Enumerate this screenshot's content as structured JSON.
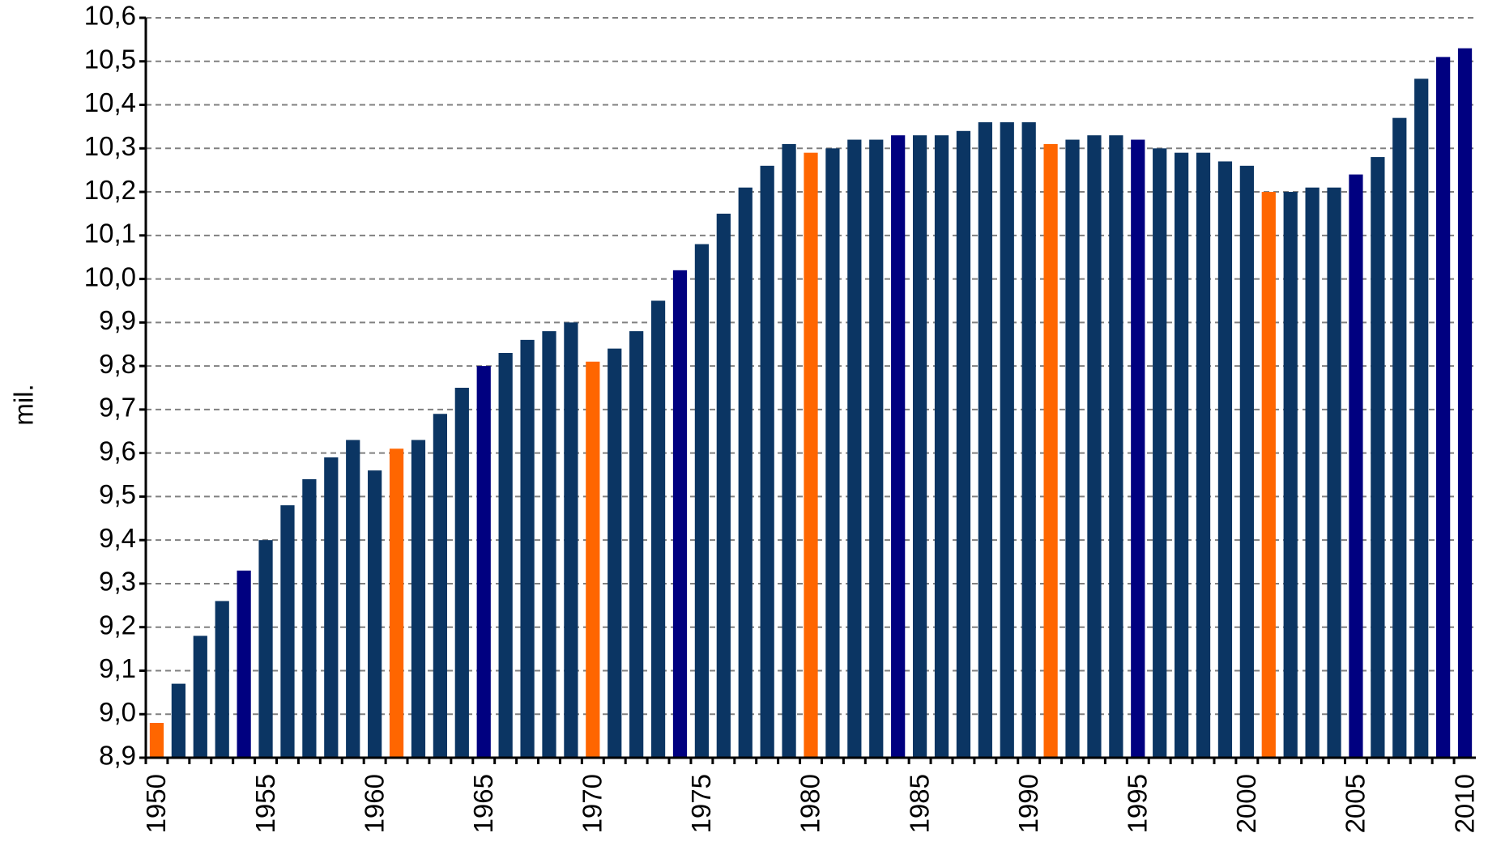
{
  "chart_data": {
    "type": "bar",
    "y_label": "mil.",
    "categories": [
      "1950",
      null,
      null,
      null,
      null,
      "1955",
      null,
      null,
      null,
      null,
      "1960",
      null,
      null,
      null,
      null,
      "1965",
      null,
      null,
      null,
      null,
      "1970",
      null,
      null,
      null,
      null,
      "1975",
      null,
      null,
      null,
      null,
      "1980",
      null,
      null,
      null,
      null,
      "1985",
      null,
      null,
      null,
      null,
      "1990",
      null,
      null,
      null,
      null,
      "1995",
      null,
      null,
      null,
      null,
      "2000",
      null,
      null,
      null,
      null,
      "2005",
      null,
      null,
      null,
      null,
      "2010"
    ],
    "values": [
      8.98,
      9.07,
      9.18,
      9.26,
      9.33,
      9.4,
      9.48,
      9.54,
      9.59,
      9.63,
      9.56,
      9.61,
      9.63,
      9.69,
      9.75,
      9.8,
      9.83,
      9.86,
      9.88,
      9.9,
      9.81,
      9.84,
      9.88,
      9.95,
      10.02,
      10.08,
      10.15,
      10.21,
      10.26,
      10.31,
      10.29,
      10.3,
      10.32,
      10.32,
      10.33,
      10.33,
      10.33,
      10.34,
      10.36,
      10.36,
      10.36,
      10.31,
      10.32,
      10.33,
      10.33,
      10.32,
      10.3,
      10.29,
      10.29,
      10.27,
      10.26,
      10.2,
      10.2,
      10.21,
      10.21,
      10.24,
      10.28,
      10.37,
      10.46,
      10.51,
      10.53
    ],
    "colors": [
      "#ff6600",
      "#0b3563",
      "#0b3563",
      "#0b3563",
      "#000080",
      "#0b3563",
      "#0b3563",
      "#0b3563",
      "#0b3563",
      "#0b3563",
      "#0b3563",
      "#ff6600",
      "#0b3563",
      "#0b3563",
      "#0b3563",
      "#000080",
      "#0b3563",
      "#0b3563",
      "#0b3563",
      "#0b3563",
      "#ff6600",
      "#0b3563",
      "#0b3563",
      "#0b3563",
      "#000080",
      "#0b3563",
      "#0b3563",
      "#0b3563",
      "#0b3563",
      "#0b3563",
      "#ff6600",
      "#0b3563",
      "#0b3563",
      "#0b3563",
      "#000080",
      "#0b3563",
      "#0b3563",
      "#0b3563",
      "#0b3563",
      "#0b3563",
      "#0b3563",
      "#ff6600",
      "#0b3563",
      "#0b3563",
      "#0b3563",
      "#000080",
      "#0b3563",
      "#0b3563",
      "#0b3563",
      "#0b3563",
      "#0b3563",
      "#ff6600",
      "#0b3563",
      "#0b3563",
      "#0b3563",
      "#000080",
      "#0b3563",
      "#0b3563",
      "#0b3563",
      "#000080",
      "#000080"
    ],
    "ylim": [
      8.9,
      10.6
    ],
    "yticks": [
      {
        "value": 8.9,
        "label": "8,9"
      },
      {
        "value": 9.0,
        "label": "9,0"
      },
      {
        "value": 9.1,
        "label": "9,1"
      },
      {
        "value": 9.2,
        "label": "9,2"
      },
      {
        "value": 9.3,
        "label": "9,3"
      },
      {
        "value": 9.4,
        "label": "9,4"
      },
      {
        "value": 9.5,
        "label": "9,5"
      },
      {
        "value": 9.6,
        "label": "9,6"
      },
      {
        "value": 9.7,
        "label": "9,7"
      },
      {
        "value": 9.8,
        "label": "9,8"
      },
      {
        "value": 9.9,
        "label": "9,9"
      },
      {
        "value": 10.0,
        "label": "10,0"
      },
      {
        "value": 10.1,
        "label": "10,1"
      },
      {
        "value": 10.2,
        "label": "10,2"
      },
      {
        "value": 10.3,
        "label": "10,3"
      },
      {
        "value": 10.4,
        "label": "10,4"
      },
      {
        "value": 10.5,
        "label": "10,5"
      },
      {
        "value": 10.6,
        "label": "10,6"
      }
    ],
    "grid": true
  }
}
